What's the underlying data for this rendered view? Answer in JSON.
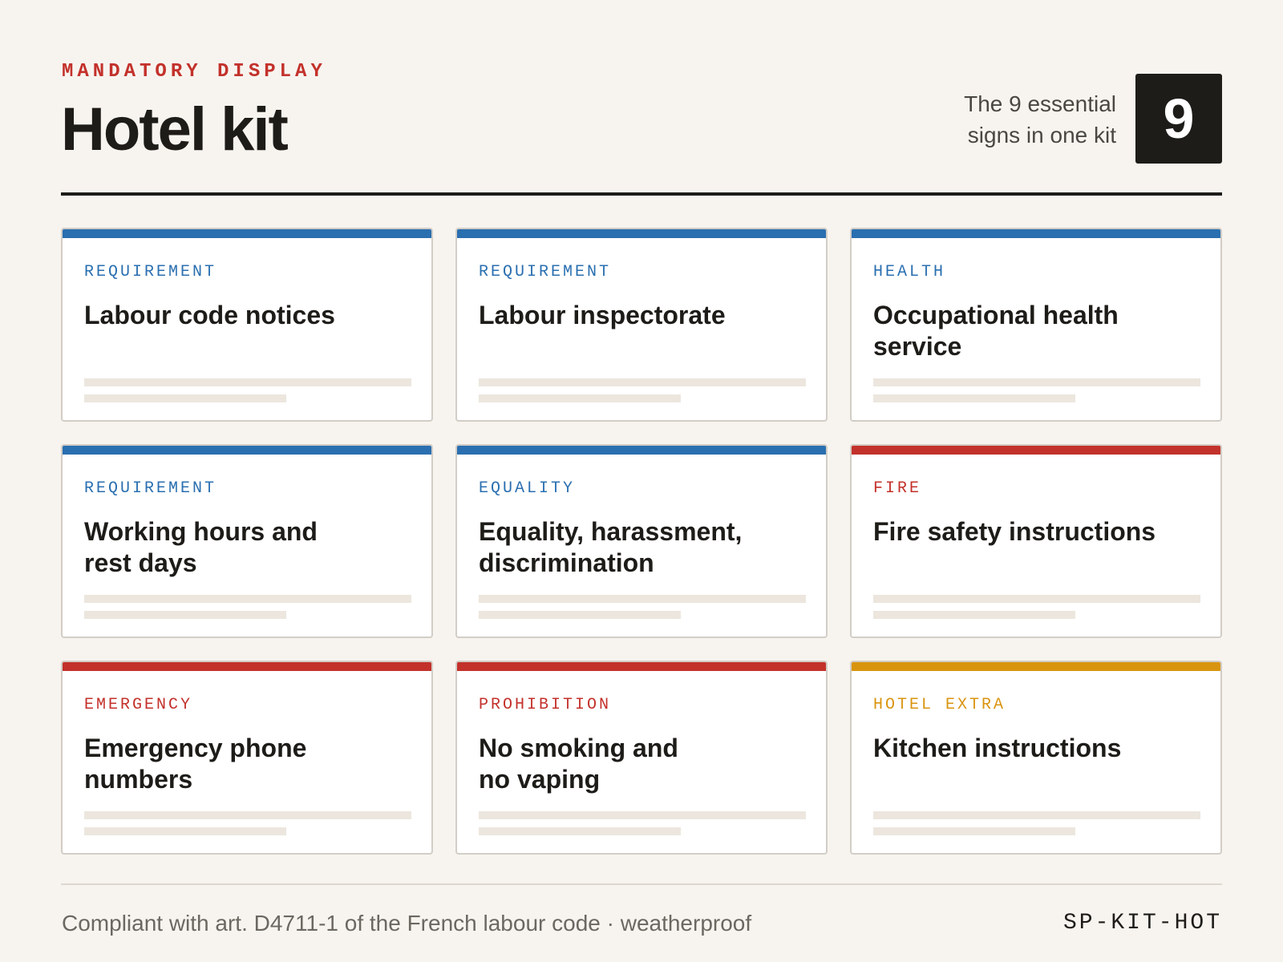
{
  "header": {
    "eyebrow": "MANDATORY DISPLAY",
    "title": "Hotel kit",
    "count_text_line1": "The 9 essential",
    "count_text_line2": "signs in one kit",
    "count": "9"
  },
  "colors": {
    "requirement": "#2a6fb0",
    "fire": "#c3312b",
    "hotel_extra": "#d9940f"
  },
  "cards": [
    {
      "category": "REQUIREMENT",
      "title": "Labour code notices",
      "color": "#2a6fb0"
    },
    {
      "category": "REQUIREMENT",
      "title": "Labour inspectorate",
      "color": "#2a6fb0"
    },
    {
      "category": "HEALTH",
      "title": "Occupational health service",
      "color": "#2a6fb0"
    },
    {
      "category": "REQUIREMENT",
      "title": "Working hours and rest days",
      "color": "#2a6fb0"
    },
    {
      "category": "EQUALITY",
      "title": "Equality, harassment, discrimination",
      "color": "#2a6fb0"
    },
    {
      "category": "FIRE",
      "title": "Fire safety instructions",
      "color": "#c3312b"
    },
    {
      "category": "EMERGENCY",
      "title": "Emergency phone numbers",
      "color": "#c3312b"
    },
    {
      "category": "PROHIBITION",
      "title": "No smoking and no vaping",
      "color": "#c3312b"
    },
    {
      "category": "HOTEL EXTRA",
      "title": "Kitchen instructions",
      "color": "#d9940f"
    }
  ],
  "footer": {
    "note": "Compliant with art. D4711-1 of the French labour code · weatherproof",
    "code": "SP-KIT-HOT"
  }
}
